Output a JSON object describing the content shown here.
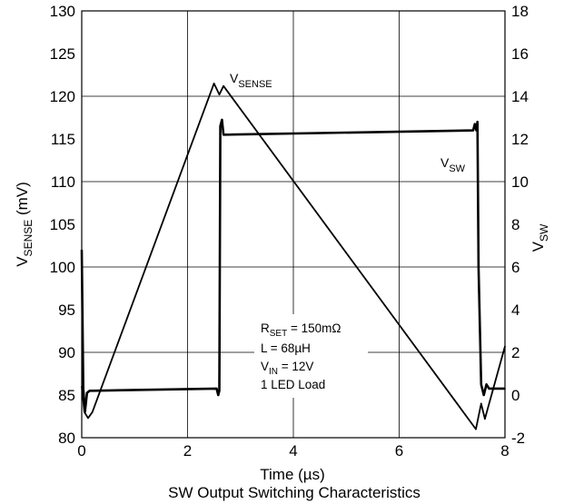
{
  "chart_data": {
    "type": "line",
    "caption": "SW Output Switching Characteristics",
    "xlabel": "Time (µs)",
    "ylabel_left": {
      "main": "V",
      "sub": "SENSE",
      "suffix": " (mV)"
    },
    "ylabel_right": {
      "main": "V",
      "sub": "SW"
    },
    "xlim": [
      0,
      8
    ],
    "ylim_left": [
      80,
      130
    ],
    "ylim_right": [
      -2,
      18
    ],
    "x_ticks": [
      "0",
      "2",
      "4",
      "6",
      "8"
    ],
    "y_ticks_left": [
      "80",
      "85",
      "90",
      "95",
      "100",
      "105",
      "110",
      "115",
      "120",
      "125",
      "130"
    ],
    "y_ticks_right": [
      "-2",
      "0",
      "2",
      "4",
      "6",
      "8",
      "10",
      "12",
      "14",
      "16",
      "18"
    ],
    "grid": true,
    "annotation": {
      "lines": [
        {
          "main": "R",
          "sub": "SET",
          "rest": " = 150mΩ"
        },
        {
          "main": "L = 68µH",
          "sub": "",
          "rest": ""
        },
        {
          "main": "V",
          "sub": "IN",
          "rest": " = 12V"
        },
        {
          "main": "1 LED Load",
          "sub": "",
          "rest": ""
        }
      ]
    },
    "series": [
      {
        "label": {
          "main": "V",
          "sub": "SENSE"
        },
        "axis": "left",
        "x": [
          0.0,
          0.05,
          0.12,
          0.2,
          2.5,
          2.6,
          2.68,
          7.45,
          7.55,
          7.62,
          8.0
        ],
        "y": [
          86.0,
          83.0,
          82.3,
          83.0,
          121.5,
          120.2,
          121.2,
          81.0,
          84.0,
          82.2,
          90.7
        ]
      },
      {
        "label": {
          "main": "V",
          "sub": "SW"
        },
        "axis": "right",
        "x": [
          0.0,
          0.03,
          0.06,
          0.1,
          0.15,
          0.2,
          2.55,
          2.58,
          2.6,
          2.62,
          2.65,
          2.68,
          2.72,
          7.4,
          7.43,
          7.46,
          7.48,
          7.5,
          7.55,
          7.6,
          7.65,
          7.7,
          7.75,
          8.0
        ],
        "y": [
          6.8,
          0.3,
          -0.8,
          0.1,
          0.2,
          0.2,
          0.3,
          0.0,
          0.2,
          12.6,
          12.9,
          12.2,
          12.2,
          12.4,
          12.7,
          12.4,
          12.8,
          6.0,
          0.5,
          0.0,
          0.5,
          0.3,
          0.3,
          0.3
        ]
      }
    ]
  }
}
